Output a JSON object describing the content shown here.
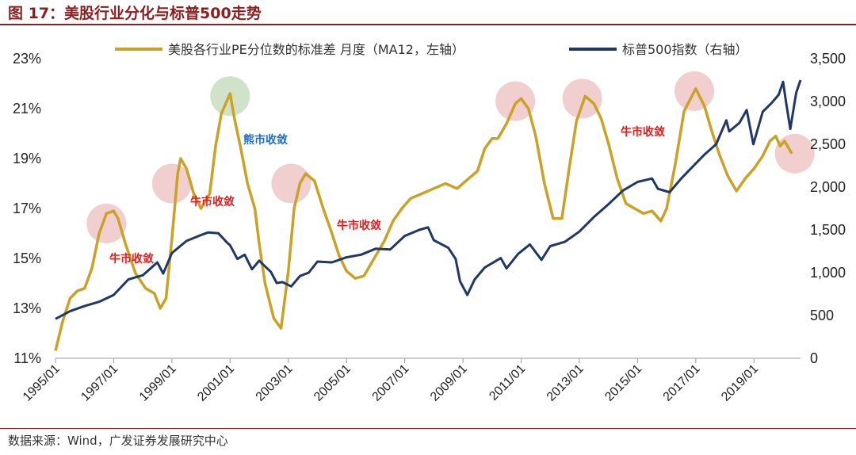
{
  "header": {
    "title": "图 17：美股行业分化与标普500走势"
  },
  "footer": {
    "source": "数据来源：Wind，广发证券发展研究中心"
  },
  "colors": {
    "std_line": "#C9A227",
    "sp_line": "#1F3864",
    "title": "#8a1f1f",
    "bull_circle": "#E8A7A7",
    "bear_circle": "#A9CC9A",
    "bull_text": "#E11D1D",
    "bear_text": "#1E6FC0"
  },
  "chart_data": {
    "type": "line",
    "title": "",
    "legend_position": "top",
    "grid": false,
    "x_ticks": [
      "1995/01",
      "1997/01",
      "1999/01",
      "2001/01",
      "2003/01",
      "2005/01",
      "2007/01",
      "2009/01",
      "2011/01",
      "2013/01",
      "2015/01",
      "2017/01",
      "2019/01"
    ],
    "y_left": {
      "ylim": [
        11,
        23
      ],
      "ticks": [
        "11%",
        "13%",
        "15%",
        "17%",
        "19%",
        "21%",
        "23%"
      ]
    },
    "y_right": {
      "ylim": [
        0,
        3500
      ],
      "ticks": [
        "0",
        "500",
        "1,000",
        "1,500",
        "2,000",
        "2,500",
        "3,000",
        "3,500"
      ]
    },
    "series": [
      {
        "name": "美股各行业PE分位数的标准差  月度（MA12，左轴）",
        "axis": "left",
        "points": [
          [
            1995.0,
            11.3
          ],
          [
            1995.25,
            12.5
          ],
          [
            1995.5,
            13.4
          ],
          [
            1995.75,
            13.7
          ],
          [
            1996.0,
            13.8
          ],
          [
            1996.25,
            14.6
          ],
          [
            1996.5,
            16.0
          ],
          [
            1996.75,
            16.8
          ],
          [
            1997.0,
            16.9
          ],
          [
            1997.15,
            16.6
          ],
          [
            1997.4,
            15.6
          ],
          [
            1997.75,
            14.4
          ],
          [
            1998.1,
            13.8
          ],
          [
            1998.4,
            13.6
          ],
          [
            1998.6,
            13.0
          ],
          [
            1998.8,
            13.4
          ],
          [
            1999.0,
            15.8
          ],
          [
            1999.2,
            18.4
          ],
          [
            1999.3,
            19.0
          ],
          [
            1999.5,
            18.6
          ],
          [
            1999.75,
            17.6
          ],
          [
            2000.0,
            17.0
          ],
          [
            2000.3,
            17.6
          ],
          [
            2000.5,
            19.5
          ],
          [
            2000.7,
            20.8
          ],
          [
            2001.0,
            21.6
          ],
          [
            2001.15,
            20.6
          ],
          [
            2001.35,
            19.5
          ],
          [
            2001.6,
            18.0
          ],
          [
            2001.85,
            17.0
          ],
          [
            2002.0,
            15.6
          ],
          [
            2002.2,
            14.0
          ],
          [
            2002.5,
            12.6
          ],
          [
            2002.75,
            12.2
          ],
          [
            2003.0,
            14.5
          ],
          [
            2003.2,
            17.0
          ],
          [
            2003.4,
            18.0
          ],
          [
            2003.6,
            18.4
          ],
          [
            2003.9,
            18.1
          ],
          [
            2004.2,
            17.0
          ],
          [
            2004.5,
            16.0
          ],
          [
            2004.75,
            15.1
          ],
          [
            2005.0,
            14.5
          ],
          [
            2005.3,
            14.2
          ],
          [
            2005.6,
            14.3
          ],
          [
            2005.9,
            14.9
          ],
          [
            2006.3,
            15.7
          ],
          [
            2006.6,
            16.5
          ],
          [
            2006.9,
            17.0
          ],
          [
            2007.2,
            17.4
          ],
          [
            2007.6,
            17.6
          ],
          [
            2008.0,
            17.8
          ],
          [
            2008.4,
            18.0
          ],
          [
            2008.8,
            17.8
          ],
          [
            2009.2,
            18.2
          ],
          [
            2009.5,
            18.5
          ],
          [
            2009.75,
            19.4
          ],
          [
            2010.0,
            19.8
          ],
          [
            2010.2,
            19.8
          ],
          [
            2010.5,
            20.4
          ],
          [
            2010.8,
            21.2
          ],
          [
            2011.0,
            21.4
          ],
          [
            2011.25,
            21.0
          ],
          [
            2011.5,
            19.9
          ],
          [
            2011.8,
            18.0
          ],
          [
            2012.1,
            16.6
          ],
          [
            2012.4,
            16.6
          ],
          [
            2012.65,
            18.6
          ],
          [
            2012.9,
            20.5
          ],
          [
            2013.2,
            21.5
          ],
          [
            2013.5,
            21.2
          ],
          [
            2013.75,
            20.6
          ],
          [
            2014.0,
            19.6
          ],
          [
            2014.3,
            18.2
          ],
          [
            2014.6,
            17.2
          ],
          [
            2014.9,
            17.0
          ],
          [
            2015.2,
            16.8
          ],
          [
            2015.5,
            16.9
          ],
          [
            2015.8,
            16.5
          ],
          [
            2016.0,
            17.0
          ],
          [
            2016.3,
            18.8
          ],
          [
            2016.6,
            20.9
          ],
          [
            2017.0,
            21.8
          ],
          [
            2017.3,
            21.1
          ],
          [
            2017.55,
            20.1
          ],
          [
            2017.8,
            19.2
          ],
          [
            2018.1,
            18.3
          ],
          [
            2018.4,
            17.7
          ],
          [
            2018.7,
            18.2
          ],
          [
            2019.0,
            18.6
          ],
          [
            2019.3,
            19.1
          ],
          [
            2019.55,
            19.7
          ],
          [
            2019.75,
            19.9
          ],
          [
            2019.9,
            19.5
          ],
          [
            2020.05,
            19.7
          ],
          [
            2020.3,
            19.2
          ]
        ]
      },
      {
        "name": "标普500指数（右轴）",
        "axis": "right",
        "points": [
          [
            1995.0,
            460
          ],
          [
            1995.5,
            550
          ],
          [
            1996.0,
            610
          ],
          [
            1996.5,
            660
          ],
          [
            1997.0,
            740
          ],
          [
            1997.5,
            920
          ],
          [
            1998.0,
            970
          ],
          [
            1998.5,
            1120
          ],
          [
            1998.7,
            990
          ],
          [
            1999.0,
            1230
          ],
          [
            1999.5,
            1370
          ],
          [
            2000.0,
            1440
          ],
          [
            2000.25,
            1470
          ],
          [
            2000.6,
            1460
          ],
          [
            2000.9,
            1350
          ],
          [
            2001.0,
            1320
          ],
          [
            2001.25,
            1160
          ],
          [
            2001.5,
            1210
          ],
          [
            2001.75,
            1040
          ],
          [
            2002.0,
            1140
          ],
          [
            2002.4,
            1010
          ],
          [
            2002.6,
            880
          ],
          [
            2002.8,
            890
          ],
          [
            2003.1,
            840
          ],
          [
            2003.4,
            960
          ],
          [
            2003.7,
            1000
          ],
          [
            2004.0,
            1130
          ],
          [
            2004.5,
            1120
          ],
          [
            2005.0,
            1180
          ],
          [
            2005.5,
            1210
          ],
          [
            2006.0,
            1280
          ],
          [
            2006.5,
            1270
          ],
          [
            2007.0,
            1430
          ],
          [
            2007.5,
            1500
          ],
          [
            2007.8,
            1530
          ],
          [
            2008.0,
            1380
          ],
          [
            2008.5,
            1290
          ],
          [
            2008.75,
            1160
          ],
          [
            2008.9,
            900
          ],
          [
            2009.15,
            740
          ],
          [
            2009.4,
            920
          ],
          [
            2009.75,
            1060
          ],
          [
            2010.0,
            1110
          ],
          [
            2010.3,
            1170
          ],
          [
            2010.5,
            1050
          ],
          [
            2010.9,
            1220
          ],
          [
            2011.3,
            1330
          ],
          [
            2011.7,
            1150
          ],
          [
            2012.0,
            1310
          ],
          [
            2012.5,
            1360
          ],
          [
            2013.0,
            1480
          ],
          [
            2013.5,
            1650
          ],
          [
            2014.0,
            1800
          ],
          [
            2014.5,
            1960
          ],
          [
            2015.0,
            2060
          ],
          [
            2015.5,
            2100
          ],
          [
            2015.7,
            1980
          ],
          [
            2016.1,
            1940
          ],
          [
            2016.5,
            2100
          ],
          [
            2016.9,
            2240
          ],
          [
            2017.3,
            2380
          ],
          [
            2017.7,
            2500
          ],
          [
            2018.05,
            2780
          ],
          [
            2018.15,
            2650
          ],
          [
            2018.5,
            2750
          ],
          [
            2018.75,
            2900
          ],
          [
            2018.98,
            2500
          ],
          [
            2019.3,
            2880
          ],
          [
            2019.6,
            2980
          ],
          [
            2019.85,
            3080
          ],
          [
            2020.0,
            3230
          ],
          [
            2020.1,
            3000
          ],
          [
            2020.25,
            2680
          ],
          [
            2020.45,
            3100
          ],
          [
            2020.6,
            3250
          ]
        ]
      }
    ],
    "annotations": [
      {
        "text": "熊市收敛",
        "type": "bear"
      },
      {
        "text": "牛市收敛",
        "type": "bull"
      },
      {
        "text": "牛市收敛",
        "type": "bull"
      },
      {
        "text": "牛市收敛",
        "type": "bull"
      },
      {
        "text": "牛市收敛",
        "type": "bull"
      }
    ]
  }
}
